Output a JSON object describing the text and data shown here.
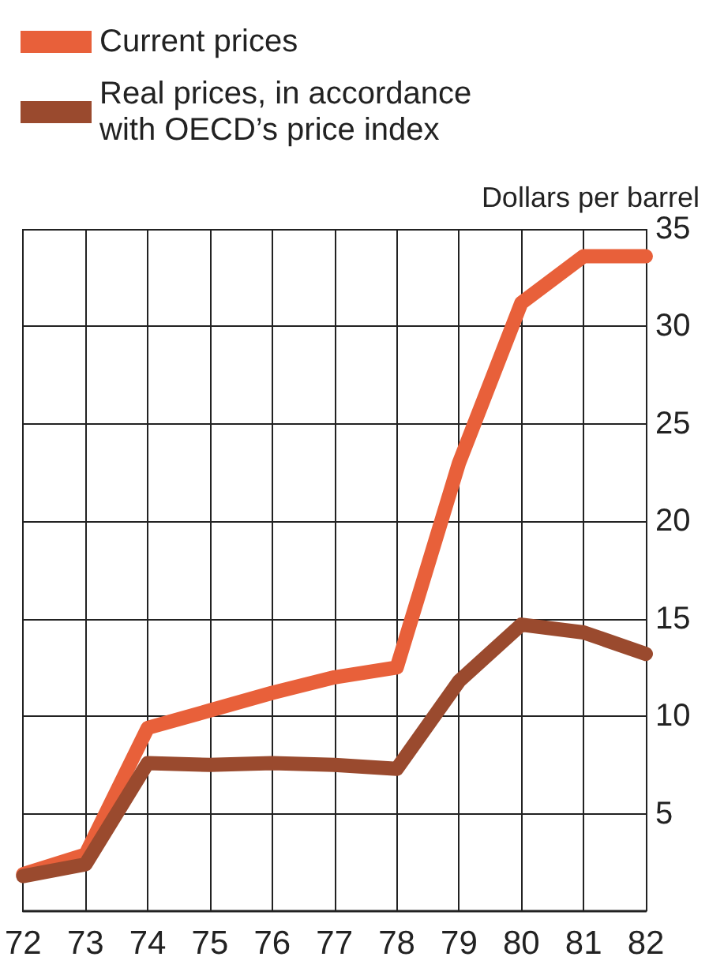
{
  "chart_data": {
    "type": "line",
    "ylabel": "Dollars per barrel",
    "categories": [
      "72",
      "73",
      "74",
      "75",
      "76",
      "77",
      "78",
      "79",
      "80",
      "81",
      "82"
    ],
    "series": [
      {
        "name": "Current prices",
        "color": "#e8603a",
        "values": [
          1.9,
          2.9,
          9.4,
          10.3,
          11.2,
          12.0,
          12.5,
          23.0,
          31.2,
          33.6,
          33.6
        ]
      },
      {
        "name": "Real prices, in accordance with OECD’s price index",
        "color": "#9a4a2e",
        "values": [
          1.8,
          2.4,
          7.6,
          7.5,
          7.6,
          7.5,
          7.3,
          11.8,
          14.7,
          14.3,
          13.2
        ]
      }
    ],
    "ylim": [
      0,
      35
    ],
    "yticks": [
      5,
      10,
      15,
      20,
      25,
      30,
      35
    ],
    "grid": true,
    "legend": "top left",
    "marker": "none",
    "line_style": "solid"
  }
}
